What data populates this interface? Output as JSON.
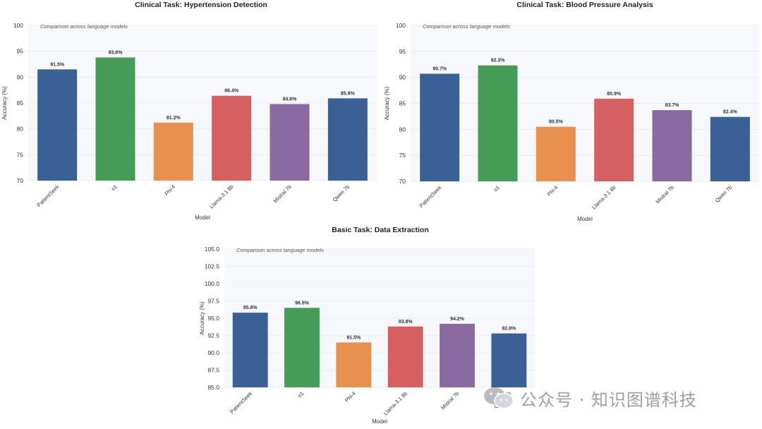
{
  "watermark": {
    "text": "公众号 · 知识图谱科技"
  },
  "colors": {
    "blue": "#3a6095",
    "green": "#449c57",
    "orange": "#e8904f",
    "red": "#d55f61",
    "purple": "#8a6aa0",
    "plot_bg": "#f6f8fb",
    "grid": "#e4e7ec"
  },
  "chart_data": [
    {
      "type": "bar",
      "title": "Clinical Task: Hypertension Detection",
      "subtitle": "Comparison across language models",
      "xlabel": "Model",
      "ylabel": "Accuracy (%)",
      "ylim": [
        70,
        100
      ],
      "yticks": [
        70,
        75,
        80,
        85,
        90,
        95,
        100
      ],
      "ytick_labels": [
        "70",
        "75",
        "80",
        "85",
        "90",
        "95",
        "100"
      ],
      "categories": [
        "PatientSeek",
        "o1",
        "Phi-4",
        "Llama-3.1 8b",
        "Mistral 7b",
        "Qwen 7b"
      ],
      "values": [
        91.5,
        93.8,
        81.2,
        86.4,
        84.8,
        85.9
      ],
      "value_labels": [
        "91.5%",
        "93.8%",
        "81.2%",
        "86.4%",
        "84.8%",
        "85.9%"
      ],
      "bar_colors": [
        "blue",
        "green",
        "orange",
        "red",
        "purple",
        "blue"
      ]
    },
    {
      "type": "bar",
      "title": "Clinical Task: Blood Pressure Analysis",
      "subtitle": "Comparison across language models",
      "xlabel": "Model",
      "ylabel": "Accuracy (%)",
      "ylim": [
        70,
        100
      ],
      "yticks": [
        70,
        75,
        80,
        85,
        90,
        95,
        100
      ],
      "ytick_labels": [
        "70",
        "75",
        "80",
        "85",
        "90",
        "95",
        "100"
      ],
      "categories": [
        "PatientSeek",
        "o1",
        "Phi-4",
        "Llama-3.1 8b",
        "Mistral 7b",
        "Qwen 7b"
      ],
      "values": [
        90.7,
        92.3,
        80.5,
        85.9,
        83.7,
        82.4
      ],
      "value_labels": [
        "90.7%",
        "92.3%",
        "80.5%",
        "85.9%",
        "83.7%",
        "82.4%"
      ],
      "bar_colors": [
        "blue",
        "green",
        "orange",
        "red",
        "purple",
        "blue"
      ]
    },
    {
      "type": "bar",
      "title": "Basic Task: Data Extraction",
      "subtitle": "Comparison across language models",
      "xlabel": "Model",
      "ylabel": "Accuracy (%)",
      "ylim": [
        85,
        105
      ],
      "yticks": [
        85,
        87.5,
        90,
        92.5,
        95,
        97.5,
        100,
        102.5,
        105
      ],
      "ytick_labels": [
        "85.0",
        "87.5",
        "90.0",
        "92.5",
        "95.0",
        "97.5",
        "100.0",
        "102.5",
        "105.0"
      ],
      "categories": [
        "PatientSeek",
        "o1",
        "Phi-4",
        "Llama-3.1 8b",
        "Mistral 7b",
        "Qwen 7b"
      ],
      "values": [
        95.8,
        96.5,
        91.5,
        93.8,
        94.2,
        92.8
      ],
      "value_labels": [
        "95.8%",
        "96.5%",
        "91.5%",
        "93.8%",
        "94.2%",
        "92.8%"
      ],
      "bar_colors": [
        "blue",
        "green",
        "orange",
        "red",
        "purple",
        "blue"
      ]
    }
  ]
}
